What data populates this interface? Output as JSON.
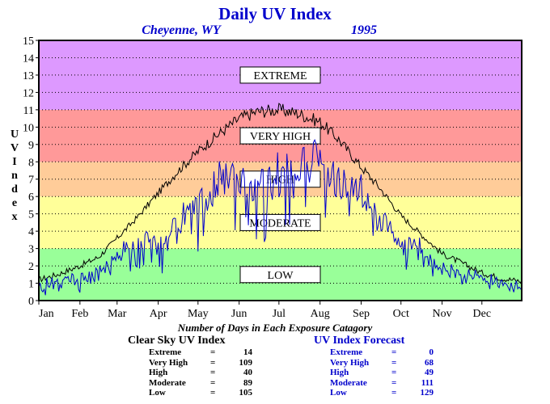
{
  "chart_data": {
    "type": "line",
    "title": "Daily UV Index",
    "subtitle_location": "Cheyenne, WY",
    "subtitle_year": "1995",
    "ylabel": "U V I n d e x",
    "ylim": [
      0,
      15
    ],
    "yticks": [
      "0",
      "1",
      "2",
      "3",
      "4",
      "5",
      "6",
      "7",
      "8",
      "9",
      "10",
      "11",
      "12",
      "13",
      "14",
      "15"
    ],
    "months": [
      "Jan",
      "Feb",
      "Mar",
      "Apr",
      "May",
      "Jun",
      "Jul",
      "Aug",
      "Sep",
      "Oct",
      "Nov",
      "Dec"
    ],
    "grid": true,
    "bands": [
      {
        "label": "LOW",
        "from": 0,
        "to": 3,
        "color": "#99ff99"
      },
      {
        "label": "MODERATE",
        "from": 3,
        "to": 6,
        "color": "#ffff99"
      },
      {
        "label": "HIGH",
        "from": 6,
        "to": 8,
        "color": "#ffcc99"
      },
      {
        "label": "VERY HIGH",
        "from": 8,
        "to": 11,
        "color": "#ff9999"
      },
      {
        "label": "EXTREME",
        "from": 11,
        "to": 15,
        "color": "#dd99ff"
      }
    ],
    "series": [
      {
        "name": "Clear Sky UV Index",
        "color": "#000000",
        "x": [
          1,
          15,
          32,
          46,
          60,
          74,
          91,
          105,
          121,
          135,
          152,
          166,
          182,
          196,
          213,
          227,
          244,
          258,
          274,
          288,
          305,
          319,
          335,
          349,
          365
        ],
        "values": [
          1.2,
          1.5,
          2.0,
          2.5,
          3.6,
          4.7,
          6.2,
          7.4,
          8.6,
          9.5,
          10.5,
          10.9,
          11.0,
          10.8,
          10.3,
          9.3,
          7.7,
          6.5,
          4.9,
          3.9,
          2.7,
          2.2,
          1.6,
          1.3,
          1.1
        ]
      },
      {
        "name": "UV Index Forecast",
        "color": "#0000cc",
        "x": [
          1,
          15,
          32,
          46,
          60,
          74,
          91,
          105,
          121,
          135,
          152,
          166,
          182,
          196,
          213,
          227,
          244,
          258,
          274,
          288,
          305,
          319,
          335,
          349,
          365
        ],
        "values": [
          1.0,
          1.2,
          1.5,
          1.8,
          3.0,
          4.0,
          3.8,
          5.5,
          6.5,
          8.0,
          8.5,
          7.5,
          8.5,
          9.0,
          9.5,
          8.0,
          7.5,
          5.5,
          4.0,
          3.5,
          2.0,
          1.8,
          1.5,
          1.2,
          1.0
        ]
      }
    ]
  },
  "footer": {
    "heading": "Number of Days in Each Exposure Catagory",
    "clear_sky": {
      "title": "Clear Sky UV Index",
      "rows": [
        {
          "label": "Extreme",
          "eq": "=",
          "value": "14"
        },
        {
          "label": "Very High",
          "eq": "=",
          "value": "109"
        },
        {
          "label": "High",
          "eq": "=",
          "value": "40"
        },
        {
          "label": "Moderate",
          "eq": "=",
          "value": "89"
        },
        {
          "label": "Low",
          "eq": "=",
          "value": "105"
        }
      ]
    },
    "forecast": {
      "title": "UV Index Forecast",
      "rows": [
        {
          "label": "Extreme",
          "eq": "=",
          "value": "0"
        },
        {
          "label": "Very High",
          "eq": "=",
          "value": "68"
        },
        {
          "label": "High",
          "eq": "=",
          "value": "49"
        },
        {
          "label": "Moderate",
          "eq": "=",
          "value": "111"
        },
        {
          "label": "Low",
          "eq": "=",
          "value": "129"
        }
      ]
    }
  }
}
